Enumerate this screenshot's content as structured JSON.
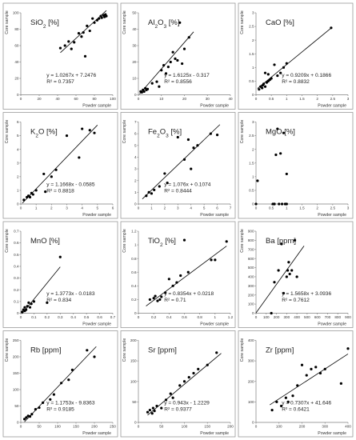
{
  "layout_cols": 3,
  "chart_data": [
    {
      "type": "scatter",
      "title": "SiO₂ [%]",
      "xlabel": "Powder sample",
      "ylabel": "Core sample",
      "xlim": [
        0,
        100
      ],
      "ylim": [
        0,
        100
      ],
      "xticks": [
        0,
        20,
        40,
        60,
        80,
        100
      ],
      "yticks": [
        0,
        20,
        40,
        60,
        80,
        100
      ],
      "xticks_labels": [
        "0",
        "20",
        "40",
        "60",
        "80",
        "100"
      ],
      "yticks_labels": [
        "0",
        "20",
        "40",
        "60",
        "80",
        "100"
      ],
      "fit": {
        "slope": 1.0267,
        "intercept": 7.2476,
        "range": [
          43,
          93
        ]
      },
      "equation": "y = 1.0267x + 7.2476",
      "r2": "R² = 0.7357",
      "annotation_pos": "right",
      "x": [
        43,
        48,
        52,
        55,
        58,
        63,
        66,
        68,
        70,
        72,
        75,
        78,
        80,
        83,
        85,
        87,
        88,
        90,
        91,
        92,
        93
      ],
      "y": [
        57,
        60,
        65,
        56,
        64,
        75,
        71,
        76,
        47,
        84,
        78,
        93,
        88,
        91,
        93,
        96,
        94,
        97,
        95,
        98,
        96
      ]
    },
    {
      "type": "scatter",
      "title": "Al₂O₃ [%]",
      "xlabel": "Powder sample",
      "ylabel": "Core sample",
      "xlim": [
        0,
        40
      ],
      "ylim": [
        0,
        50
      ],
      "xticks": [
        0,
        10,
        20,
        30,
        40
      ],
      "yticks": [
        0,
        10,
        20,
        30,
        40,
        50
      ],
      "xticks_labels": [
        "0",
        "10",
        "20",
        "30",
        "40"
      ],
      "yticks_labels": [
        "0",
        "10",
        "20",
        "30",
        "40",
        "50"
      ],
      "fit": {
        "slope": 1.6125,
        "intercept": -0.317,
        "range": [
          0.5,
          24
        ]
      },
      "equation": "y = 1.6125x - 0.317",
      "r2": "R² = 0.8556",
      "annotation_pos": "right",
      "x": [
        1,
        1.5,
        2,
        2.5,
        3,
        3.5,
        4,
        6,
        8,
        9,
        10,
        11,
        12,
        13,
        14,
        15,
        16,
        17,
        18,
        19,
        20,
        22
      ],
      "y": [
        2,
        1.5,
        3,
        2,
        4,
        3,
        3.5,
        7,
        8,
        5,
        15,
        18,
        13,
        17,
        20,
        26,
        22,
        21,
        44,
        19,
        28,
        35
      ]
    },
    {
      "type": "scatter",
      "title": "CaO [%]",
      "xlabel": "Powder sample",
      "ylabel": "Core sample",
      "xlim": [
        0,
        3
      ],
      "ylim": [
        0,
        3
      ],
      "xticks": [
        0,
        0.5,
        1,
        1.5,
        2,
        2.5,
        3
      ],
      "yticks": [
        0,
        0.5,
        1,
        1.5,
        2,
        2.5,
        3
      ],
      "xticks_labels": [
        "0",
        "0.5",
        "1",
        "1.5",
        "2",
        "2.5",
        "3"
      ],
      "yticks_labels": [
        "0",
        "0.5",
        "1",
        "1.5",
        "2",
        "2.5",
        "3"
      ],
      "fit": {
        "slope": 0.9209,
        "intercept": 0.1866,
        "range": [
          0.05,
          2.45
        ]
      },
      "equation": "y = 0.9209x + 0.1866",
      "r2": "R² = 0.8832",
      "annotation_pos": "right",
      "x": [
        0.1,
        0.15,
        0.2,
        0.22,
        0.25,
        0.3,
        0.3,
        0.35,
        0.4,
        0.4,
        0.45,
        0.5,
        0.6,
        0.7,
        0.8,
        0.9,
        1.0,
        2.45
      ],
      "y": [
        0.2,
        0.3,
        0.25,
        0.35,
        0.4,
        0.3,
        0.8,
        0.45,
        0.5,
        0.75,
        0.55,
        0.6,
        1.1,
        0.7,
        0.8,
        1.0,
        1.15,
        2.45
      ]
    },
    {
      "type": "scatter",
      "title": "K₂O [%]",
      "xlabel": "Powder sample",
      "ylabel": "Core sample",
      "xlim": [
        0,
        6
      ],
      "ylim": [
        0,
        6
      ],
      "xticks": [
        0,
        1,
        2,
        3,
        4,
        5,
        6
      ],
      "yticks": [
        0,
        1,
        2,
        3,
        4,
        5,
        6
      ],
      "xticks_labels": [
        "0",
        "1",
        "2",
        "3",
        "4",
        "5",
        "6"
      ],
      "yticks_labels": [
        "0",
        "1",
        "2",
        "3",
        "4",
        "5",
        "6"
      ],
      "fit": {
        "slope": 1.1668,
        "intercept": -0.0585,
        "range": [
          0.1,
          5
        ]
      },
      "equation": "y = 1.1668x - 0.0585",
      "r2": "R² = 0.8818",
      "annotation_pos": "right",
      "x": [
        0.2,
        0.4,
        0.5,
        0.6,
        0.7,
        0.8,
        1.0,
        1.5,
        1.6,
        2.0,
        2.3,
        3.0,
        3.8,
        4.0,
        4.5,
        4.8
      ],
      "y": [
        0.3,
        0.5,
        0.6,
        0.5,
        0.8,
        0.7,
        1.0,
        2.2,
        0.9,
        2.0,
        2.5,
        5.0,
        3.4,
        5.5,
        5.4,
        5.2
      ]
    },
    {
      "type": "scatter",
      "title": "Fe₂O₃ [%]",
      "xlabel": "Powder sample",
      "ylabel": "Core sample",
      "xlim": [
        0,
        7
      ],
      "ylim": [
        0,
        7
      ],
      "xticks": [
        0,
        1,
        2,
        3,
        4,
        5,
        6,
        7
      ],
      "yticks": [
        0,
        1,
        2,
        3,
        4,
        5,
        6,
        7
      ],
      "xticks_labels": [
        "0",
        "1",
        "2",
        "3",
        "4",
        "5",
        "6",
        "7"
      ],
      "yticks_labels": [
        "0",
        "1",
        "2",
        "3",
        "4",
        "5",
        "6",
        "7"
      ],
      "fit": {
        "slope": 1.076,
        "intercept": 0.1074,
        "range": [
          0.3,
          6.2
        ]
      },
      "equation": "y = 1.076x + 0.1074",
      "r2": "R² = 0.8444",
      "annotation_pos": "right",
      "x": [
        0.6,
        0.8,
        1.0,
        1.2,
        1.6,
        2.0,
        2.2,
        3.0,
        3.5,
        3.8,
        4.0,
        4.2,
        4.5,
        5.5,
        6.0
      ],
      "y": [
        0.7,
        1.0,
        0.9,
        1.2,
        1.5,
        2.6,
        1.8,
        5.7,
        3.8,
        5.5,
        3.0,
        4.8,
        5.0,
        6.0,
        5.9
      ]
    },
    {
      "type": "scatter",
      "title": "MgO [%]",
      "xlabel": "Powder sample",
      "ylabel": "Core sample",
      "xlim": [
        0,
        3
      ],
      "ylim": [
        0,
        3
      ],
      "xticks": [
        0,
        0.5,
        1,
        1.5,
        2,
        2.5,
        3
      ],
      "yticks": [
        0,
        0.5,
        1,
        1.5,
        2,
        2.5,
        3
      ],
      "xticks_labels": [
        "0",
        "0.5",
        "1",
        "1.5",
        "2",
        "2.5",
        "3"
      ],
      "yticks_labels": [
        "0",
        "0.5",
        "1",
        "1.5",
        "2",
        "2.5",
        "3"
      ],
      "fit": null,
      "equation": "",
      "r2": "",
      "annotation_pos": "right",
      "x": [
        0.0,
        0.05,
        0.55,
        0.6,
        0.65,
        0.7,
        0.75,
        0.8,
        0.85,
        0.9,
        0.95,
        1.0,
        1.0,
        0.6
      ],
      "y": [
        0.0,
        0.85,
        0.0,
        0.0,
        1.8,
        2.75,
        0.0,
        1.85,
        0.0,
        2.6,
        0.0,
        1.1,
        0.0,
        0.0
      ]
    },
    {
      "type": "scatter",
      "title": "MnO [%]",
      "xlabel": "Powder sample",
      "ylabel": "Core sample",
      "xlim": [
        0,
        0.7
      ],
      "ylim": [
        0,
        0.7
      ],
      "xticks": [
        0,
        0.1,
        0.2,
        0.3,
        0.4,
        0.5,
        0.6,
        0.7
      ],
      "yticks": [
        0,
        0.1,
        0.2,
        0.3,
        0.4,
        0.5,
        0.6,
        0.7
      ],
      "xticks_labels": [
        "0",
        "0.1",
        "0.2",
        "0.3",
        "0.4",
        "0.5",
        "0.6",
        "0.7"
      ],
      "yticks_labels": [
        "0",
        "0.1",
        "0.2",
        "0.3",
        "0.4",
        "0.5",
        "0.6",
        "0.7"
      ],
      "fit": {
        "slope": 1.3773,
        "intercept": -0.0183,
        "range": [
          0.01,
          0.3
        ]
      },
      "equation": "y = 1.3773x - 0.0183",
      "r2": "R² = 0.834",
      "annotation_pos": "right",
      "x": [
        0.01,
        0.02,
        0.03,
        0.03,
        0.04,
        0.05,
        0.06,
        0.07,
        0.08,
        0.1,
        0.2,
        0.3
      ],
      "y": [
        0.01,
        0.03,
        0.02,
        0.05,
        0.03,
        0.06,
        0.09,
        0.05,
        0.08,
        0.1,
        0.09,
        0.48
      ]
    },
    {
      "type": "scatter",
      "title": "TiO₂ [%]",
      "xlabel": "Powder sample",
      "ylabel": "Core sample",
      "xlim": [
        0,
        1.2
      ],
      "ylim": [
        0,
        1.2
      ],
      "xticks": [
        0,
        0.2,
        0.4,
        0.6,
        0.8,
        1,
        1.2
      ],
      "yticks": [
        0,
        0.2,
        0.4,
        0.6,
        0.8,
        1,
        1.2
      ],
      "xticks_labels": [
        "0",
        "0.2",
        "0.4",
        "0.6",
        "0.8",
        "1",
        "1.2"
      ],
      "yticks_labels": [
        "0",
        "0.2",
        "0.4",
        "0.6",
        "0.8",
        "1",
        "1.2"
      ],
      "fit": {
        "slope": 0.8354,
        "intercept": 0.0218,
        "range": [
          0.1,
          1.15
        ]
      },
      "equation": "y = 0.8354x + 0.0218",
      "r2": "R² = 0.71",
      "annotation_pos": "right",
      "x": [
        0.15,
        0.2,
        0.22,
        0.25,
        0.28,
        0.3,
        0.35,
        0.4,
        0.45,
        0.5,
        0.55,
        0.6,
        0.65,
        0.95,
        1.0,
        1.15
      ],
      "y": [
        0.2,
        0.22,
        0.25,
        0.18,
        0.2,
        0.24,
        0.3,
        0.5,
        0.4,
        0.45,
        0.55,
        1.07,
        0.6,
        0.78,
        0.78,
        1.05
      ]
    },
    {
      "type": "scatter",
      "title": "Ba [ppm]",
      "xlabel": "Powder sample",
      "ylabel": "Core sample",
      "xlim": [
        0,
        900
      ],
      "ylim": [
        0,
        900
      ],
      "xticks": [
        0,
        100,
        200,
        300,
        400,
        500,
        600,
        700,
        800,
        900
      ],
      "yticks": [
        0,
        100,
        200,
        300,
        400,
        500,
        600,
        700,
        800,
        900
      ],
      "xticks_labels": [
        "0",
        "100",
        "200",
        "300",
        "400",
        "500",
        "600",
        "700",
        "800",
        "900"
      ],
      "yticks_labels": [
        "0",
        "100",
        "200",
        "300",
        "400",
        "500",
        "600",
        "700",
        "800",
        "900"
      ],
      "fit": {
        "slope": 1.5658,
        "intercept": 3.0936,
        "range": [
          0,
          470
        ]
      },
      "equation": "y = 1.5658x + 3.0936",
      "r2": "R² = 0.7612",
      "annotation_pos": "right",
      "x": [
        150,
        180,
        220,
        250,
        270,
        300,
        310,
        320,
        330,
        350,
        380,
        400
      ],
      "y": [
        0,
        340,
        470,
        760,
        220,
        400,
        470,
        560,
        430,
        470,
        800,
        400
      ]
    },
    {
      "type": "scatter",
      "title": "Rb [ppm]",
      "xlabel": "Powder sample",
      "ylabel": "Core sample",
      "xlim": [
        0,
        250
      ],
      "ylim": [
        0,
        250
      ],
      "xticks": [
        0,
        50,
        100,
        150,
        200,
        250
      ],
      "yticks": [
        0,
        50,
        100,
        150,
        200,
        250
      ],
      "xticks_labels": [
        "0",
        "50",
        "100",
        "150",
        "200",
        "250"
      ],
      "yticks_labels": [
        "0",
        "50",
        "100",
        "150",
        "200",
        "250"
      ],
      "fit": {
        "slope": 1.1753,
        "intercept": -9.8363,
        "range": [
          10,
          205
        ]
      },
      "equation": "y = 1.1753x - 9.8363",
      "r2": "R² = 0.9185",
      "annotation_pos": "right",
      "x": [
        10,
        15,
        20,
        25,
        30,
        40,
        50,
        60,
        80,
        90,
        110,
        130,
        140,
        180,
        200
      ],
      "y": [
        10,
        15,
        20,
        18,
        25,
        40,
        45,
        60,
        70,
        85,
        120,
        130,
        160,
        220,
        200
      ]
    },
    {
      "type": "scatter",
      "title": "Sr [ppm]",
      "xlabel": "Powder sample",
      "ylabel": "Core sample",
      "xlim": [
        0,
        200
      ],
      "ylim": [
        0,
        200
      ],
      "xticks": [
        0,
        50,
        100,
        150,
        200
      ],
      "yticks": [
        0,
        50,
        100,
        150,
        200
      ],
      "xticks_labels": [
        "0",
        "50",
        "100",
        "150",
        "200"
      ],
      "yticks_labels": [
        "0",
        "50",
        "100",
        "150",
        "200"
      ],
      "fit": {
        "slope": 0.943,
        "intercept": -1.2229,
        "range": [
          20,
          180
        ]
      },
      "equation": "y = 0.943x - 1.2229",
      "r2": "R² = 0.9377",
      "annotation_pos": "right",
      "x": [
        20,
        25,
        30,
        32,
        35,
        40,
        50,
        60,
        70,
        75,
        90,
        100,
        110,
        120,
        130,
        150,
        170
      ],
      "y": [
        25,
        30,
        22,
        35,
        28,
        40,
        35,
        55,
        70,
        60,
        90,
        100,
        110,
        120,
        130,
        140,
        170
      ]
    },
    {
      "type": "scatter",
      "title": "Zr [ppm]",
      "xlabel": "Powder sample",
      "ylabel": "Core sample",
      "xlim": [
        0,
        400
      ],
      "ylim": [
        0,
        400
      ],
      "xticks": [
        0,
        100,
        200,
        300,
        400
      ],
      "yticks": [
        0,
        100,
        200,
        300,
        400
      ],
      "xticks_labels": [
        "0",
        "100",
        "200",
        "300",
        "400"
      ],
      "yticks_labels": [
        "0",
        "100",
        "200",
        "300",
        "400"
      ],
      "fit": {
        "slope": 0.7307,
        "intercept": 41.646,
        "range": [
          60,
          400
        ]
      },
      "equation": "y = 0.7307x + 41.646",
      "r2": "R² = 0.6421",
      "annotation_pos": "right",
      "x": [
        70,
        90,
        110,
        130,
        140,
        160,
        180,
        200,
        220,
        240,
        260,
        280,
        300,
        370,
        400
      ],
      "y": [
        60,
        100,
        80,
        120,
        100,
        130,
        180,
        280,
        230,
        260,
        270,
        240,
        260,
        190,
        360
      ]
    }
  ]
}
